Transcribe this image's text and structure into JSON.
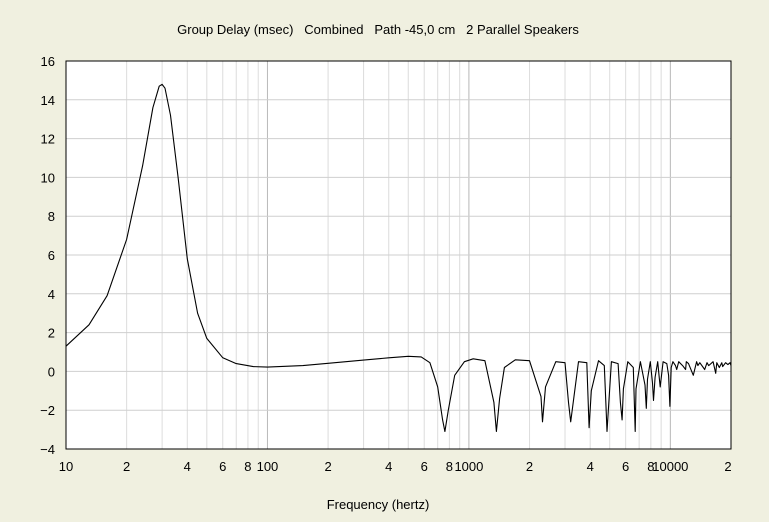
{
  "chart_data": {
    "type": "line",
    "title": "Group Delay (msec)   Combined   Path -45,0 cm   2 Parallel Speakers",
    "xlabel": "Frequency (hertz)",
    "ylabel": "",
    "x_scale": "log",
    "xlim": [
      10,
      20000
    ],
    "ylim": [
      -4,
      16
    ],
    "grid": true,
    "y_ticks": [
      -4,
      -2,
      0,
      2,
      4,
      6,
      8,
      10,
      12,
      14,
      16
    ],
    "y_tick_labels": [
      "−4",
      "−2",
      "0",
      "2",
      "4",
      "6",
      "8",
      "10",
      "12",
      "14",
      "16"
    ],
    "x_ticks": [
      {
        "value": 10,
        "label": "10"
      },
      {
        "value": 20,
        "label": "2"
      },
      {
        "value": 40,
        "label": "4"
      },
      {
        "value": 60,
        "label": "6"
      },
      {
        "value": 80,
        "label": "8"
      },
      {
        "value": 100,
        "label": "100"
      },
      {
        "value": 200,
        "label": "2"
      },
      {
        "value": 400,
        "label": "4"
      },
      {
        "value": 600,
        "label": "6"
      },
      {
        "value": 800,
        "label": "8"
      },
      {
        "value": 1000,
        "label": "1000"
      },
      {
        "value": 2000,
        "label": "2"
      },
      {
        "value": 4000,
        "label": "4"
      },
      {
        "value": 6000,
        "label": "6"
      },
      {
        "value": 8000,
        "label": "8"
      },
      {
        "value": 10000,
        "label": "10000"
      },
      {
        "value": 20000,
        "label": "2"
      }
    ],
    "series": [
      {
        "color": "#000000",
        "x": [
          10,
          13,
          16,
          20,
          24,
          27,
          29,
          30,
          31,
          33,
          36,
          40,
          45,
          50,
          60,
          70,
          85,
          100,
          150,
          200,
          300,
          400,
          500,
          580,
          640,
          700,
          740,
          760,
          790,
          850,
          950,
          1050,
          1200,
          1330,
          1370,
          1420,
          1500,
          1700,
          2000,
          2280,
          2320,
          2400,
          2700,
          3000,
          3120,
          3200,
          3500,
          3850,
          3950,
          4050,
          4400,
          4700,
          4790,
          4850,
          5100,
          5500,
          5650,
          5760,
          5850,
          6150,
          6550,
          6690,
          6750,
          7100,
          7480,
          7600,
          7700,
          7950,
          8150,
          8250,
          8400,
          8650,
          8800,
          8900,
          9200,
          9600,
          9800,
          9950,
          10100,
          10300,
          10600,
          10750,
          11000,
          11500,
          11900,
          12000,
          12300,
          13000,
          13500,
          13700,
          14000,
          14800,
          15200,
          15500,
          16300,
          16800,
          17000,
          17500,
          18000,
          18200,
          18800,
          19300,
          19800,
          20000
        ],
        "y": [
          1.3,
          2.4,
          3.9,
          6.8,
          10.6,
          13.6,
          14.7,
          14.8,
          14.6,
          13.2,
          10.0,
          5.8,
          3.0,
          1.7,
          0.7,
          0.4,
          0.25,
          0.22,
          0.3,
          0.42,
          0.58,
          0.7,
          0.78,
          0.75,
          0.45,
          -0.8,
          -2.5,
          -3.1,
          -2.0,
          -0.2,
          0.5,
          0.65,
          0.55,
          -1.6,
          -3.1,
          -1.4,
          0.2,
          0.6,
          0.55,
          -1.3,
          -2.6,
          -0.8,
          0.5,
          0.45,
          -1.6,
          -2.6,
          0.5,
          0.45,
          -2.9,
          -1.0,
          0.55,
          0.3,
          -1.8,
          -3.1,
          0.5,
          0.4,
          -1.6,
          -2.5,
          -0.9,
          0.5,
          0.2,
          -3.1,
          -0.9,
          0.5,
          -0.7,
          -1.9,
          -0.4,
          0.5,
          -0.6,
          -1.5,
          -0.3,
          0.5,
          -0.3,
          -0.8,
          0.5,
          0.4,
          -0.2,
          -1.8,
          0.2,
          0.5,
          0.3,
          0.1,
          0.5,
          0.3,
          0.1,
          0.5,
          0.4,
          -0.2,
          0.5,
          0.3,
          0.45,
          0.1,
          0.45,
          0.3,
          0.5,
          -0.1,
          0.45,
          0.2,
          0.45,
          0.25,
          0.45,
          0.35,
          0.45,
          0.3
        ]
      }
    ]
  }
}
